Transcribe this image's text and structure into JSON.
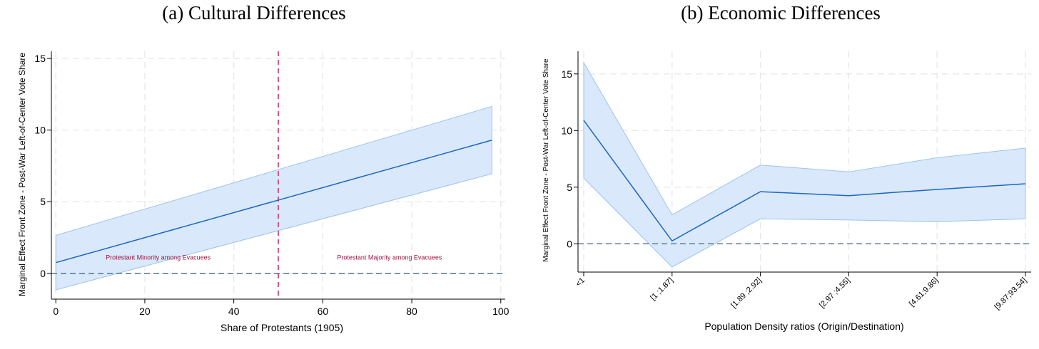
{
  "chart_data": [
    {
      "type": "line",
      "title": "(a) Cultural Differences",
      "xlabel": "Share of Protestants (1905)",
      "ylabel": "Marginal Effect Front Zone - Post-War Left-of-Center Vote Share",
      "xlim": [
        -1,
        101
      ],
      "ylim": [
        -1.8,
        15.5
      ],
      "xticks": [
        0,
        20,
        40,
        60,
        80,
        100
      ],
      "yticks": [
        0,
        5,
        10,
        15
      ],
      "x": [
        0,
        98
      ],
      "estimate": [
        0.75,
        9.3
      ],
      "ci_lower": [
        -1.15,
        6.95
      ],
      "ci_upper": [
        2.65,
        11.65
      ],
      "reference_line_y": 0,
      "vertical_line_x": 50,
      "annotations": [
        {
          "text": "Protestant Minority among Evacuees",
          "x": 23,
          "y": 0.95
        },
        {
          "text": "Protestant Majority among Evacuees",
          "x": 75,
          "y": 0.95
        }
      ],
      "grid": true
    },
    {
      "type": "line",
      "title": "(b) Economic Differences",
      "xlabel": "Population Density ratios (Origin/Destination)",
      "ylabel": "Marginal Effect Front Zone - Post-War Left-of-Center Vote Share",
      "categories": [
        "<1",
        "[1 ;1.87]",
        "[1.89 ;2.92]",
        "[2.97 ;4.55]",
        "[4.61;9.86]",
        "[9.87;93.54]"
      ],
      "ylim": [
        -2.5,
        17
      ],
      "yticks": [
        0,
        5,
        10,
        15
      ],
      "estimate": [
        10.9,
        0.25,
        4.6,
        4.25,
        4.8,
        5.3
      ],
      "ci_lower": [
        5.8,
        -2.05,
        2.2,
        2.1,
        1.95,
        2.2
      ],
      "ci_upper": [
        16.0,
        2.55,
        6.95,
        6.35,
        7.6,
        8.45
      ],
      "reference_line_y": 0,
      "grid": true
    }
  ]
}
